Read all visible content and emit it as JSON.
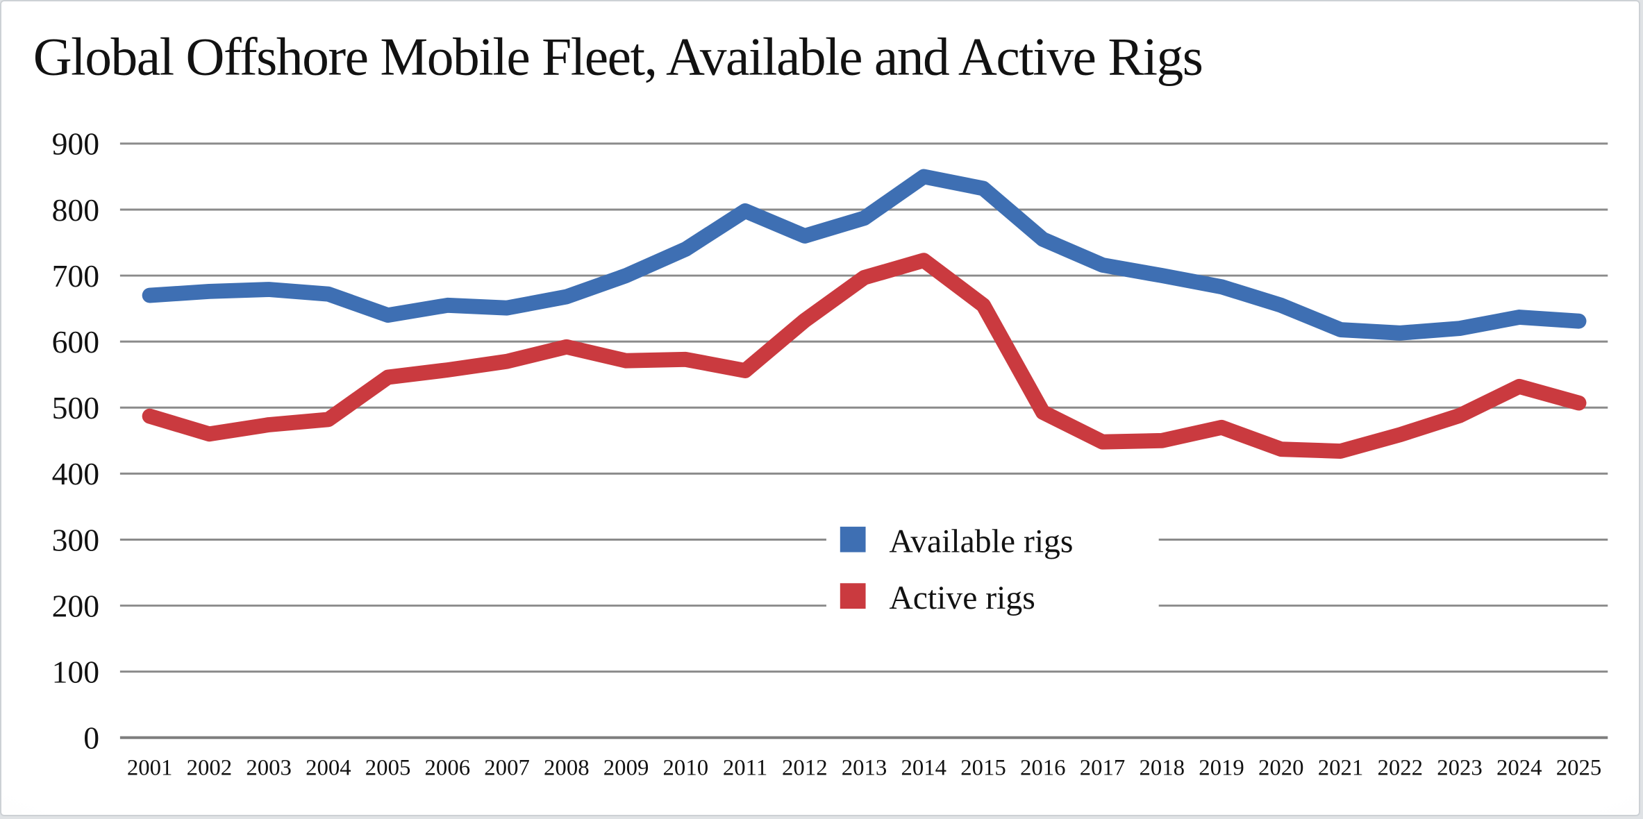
{
  "title": "Global Offshore Mobile Fleet, Available and Active Rigs",
  "legend": {
    "items": [
      {
        "label": "Available rigs",
        "color": "#3E6FB3"
      },
      {
        "label": "Active rigs",
        "color": "#CA3A3F"
      }
    ]
  },
  "chart_data": {
    "type": "line",
    "title": "Global Offshore Mobile Fleet, Available and Active Rigs",
    "categories": [
      "2001",
      "2002",
      "2003",
      "2004",
      "2005",
      "2006",
      "2007",
      "2008",
      "2009",
      "2010",
      "2011",
      "2012",
      "2013",
      "2014",
      "2015",
      "2016",
      "2017",
      "2018",
      "2019",
      "2020",
      "2021",
      "2022",
      "2023",
      "2024",
      "2025"
    ],
    "series": [
      {
        "name": "Available rigs",
        "color": "#3E6FB3",
        "values": [
          670,
          676,
          679,
          672,
          640,
          655,
          651,
          668,
          700,
          740,
          798,
          760,
          787,
          850,
          832,
          755,
          716,
          700,
          683,
          655,
          618,
          613,
          620,
          637,
          631
        ]
      },
      {
        "name": "Active rigs",
        "color": "#CA3A3F",
        "values": [
          487,
          460,
          474,
          482,
          546,
          557,
          570,
          592,
          571,
          573,
          556,
          632,
          697,
          723,
          655,
          493,
          448,
          450,
          470,
          437,
          434,
          459,
          488,
          532,
          507
        ]
      }
    ],
    "xlabel": "",
    "ylabel": "",
    "ylim": [
      0,
      900
    ],
    "yticks": [
      0,
      100,
      200,
      300,
      400,
      500,
      600,
      700,
      800,
      900
    ],
    "grid": "horizontal",
    "gridline_color": "#8B8B8B",
    "axis_line_color": "#7E7E7E",
    "legend_position": "inside-center"
  }
}
